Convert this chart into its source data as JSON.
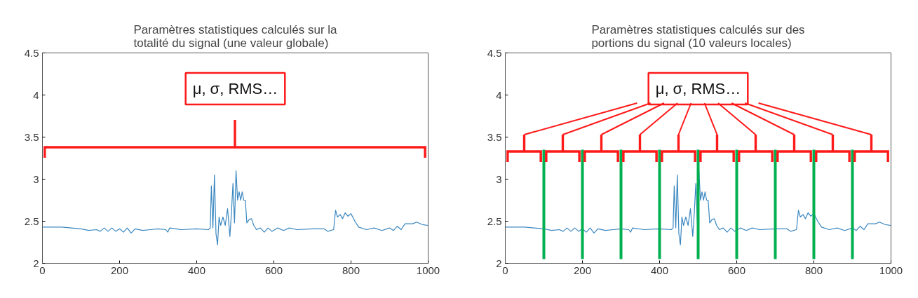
{
  "chart_data": [
    {
      "type": "line",
      "title": "Paramètres statistiques calculés sur la\ntotalité du signal (une valeur globale)",
      "x": [
        0,
        50,
        100,
        120,
        140,
        150,
        160,
        170,
        180,
        190,
        200,
        210,
        220,
        230,
        240,
        260,
        280,
        300,
        320,
        325,
        330,
        360,
        400,
        430,
        435,
        438,
        442,
        446,
        450,
        454,
        458,
        462,
        468,
        474,
        480,
        486,
        490,
        494,
        498,
        502,
        506,
        510,
        514,
        518,
        522,
        526,
        530,
        536,
        542,
        548,
        555,
        565,
        575,
        585,
        595,
        610,
        625,
        640,
        660,
        700,
        730,
        740,
        755,
        760,
        765,
        772,
        778,
        785,
        792,
        800,
        810,
        820,
        840,
        860,
        880,
        900,
        910,
        920,
        930,
        940,
        960,
        970,
        985,
        1000
      ],
      "series": [
        {
          "color": "#3a87c0",
          "values": [
            2.43,
            2.43,
            2.41,
            2.39,
            2.4,
            2.38,
            2.42,
            2.38,
            2.42,
            2.38,
            2.41,
            2.37,
            2.42,
            2.36,
            2.41,
            2.39,
            2.4,
            2.41,
            2.4,
            2.37,
            2.42,
            2.4,
            2.41,
            2.4,
            2.42,
            2.92,
            2.42,
            3.05,
            2.35,
            2.22,
            2.55,
            2.45,
            2.55,
            2.45,
            2.65,
            2.32,
            2.6,
            2.95,
            2.48,
            3.1,
            2.75,
            2.85,
            2.75,
            2.85,
            2.75,
            2.75,
            2.48,
            2.52,
            2.53,
            2.45,
            2.4,
            2.42,
            2.37,
            2.42,
            2.38,
            2.42,
            2.39,
            2.42,
            2.4,
            2.41,
            2.41,
            2.38,
            2.4,
            2.63,
            2.55,
            2.58,
            2.53,
            2.6,
            2.56,
            2.59,
            2.5,
            2.43,
            2.4,
            2.42,
            2.39,
            2.42,
            2.39,
            2.44,
            2.4,
            2.47,
            2.47,
            2.49,
            2.46,
            2.45
          ]
        }
      ],
      "xlim": [
        0,
        1000
      ],
      "ylim": [
        2,
        4.5
      ],
      "xticks": [
        0,
        200,
        400,
        600,
        800,
        1000
      ],
      "yticks": [
        2,
        2.5,
        3,
        3.5,
        4,
        4.5
      ],
      "grid": false,
      "annotations": [
        "μ, σ, RMS…"
      ]
    },
    {
      "type": "line",
      "title": "Paramètres statistiques calculés sur des\nportions du signal (10 valeurs locales)",
      "x": [
        0,
        50,
        100,
        120,
        140,
        150,
        160,
        170,
        180,
        190,
        200,
        210,
        220,
        230,
        240,
        260,
        280,
        300,
        320,
        325,
        330,
        360,
        400,
        430,
        435,
        438,
        442,
        446,
        450,
        454,
        458,
        462,
        468,
        474,
        480,
        486,
        490,
        494,
        498,
        502,
        506,
        510,
        514,
        518,
        522,
        526,
        530,
        536,
        542,
        548,
        555,
        565,
        575,
        585,
        595,
        610,
        625,
        640,
        660,
        700,
        730,
        740,
        755,
        760,
        765,
        772,
        778,
        785,
        792,
        800,
        810,
        820,
        840,
        860,
        880,
        900,
        910,
        920,
        930,
        940,
        960,
        970,
        985,
        1000
      ],
      "series": [
        {
          "color": "#3a87c0",
          "values": [
            2.43,
            2.43,
            2.41,
            2.39,
            2.4,
            2.38,
            2.42,
            2.38,
            2.42,
            2.38,
            2.41,
            2.37,
            2.42,
            2.36,
            2.41,
            2.39,
            2.4,
            2.41,
            2.4,
            2.37,
            2.42,
            2.4,
            2.41,
            2.4,
            2.42,
            2.92,
            2.42,
            3.05,
            2.35,
            2.22,
            2.55,
            2.45,
            2.55,
            2.45,
            2.65,
            2.32,
            2.6,
            2.95,
            2.48,
            3.1,
            2.75,
            2.85,
            2.75,
            2.85,
            2.75,
            2.75,
            2.48,
            2.52,
            2.53,
            2.45,
            2.4,
            2.42,
            2.37,
            2.42,
            2.38,
            2.42,
            2.39,
            2.42,
            2.4,
            2.41,
            2.41,
            2.38,
            2.4,
            2.63,
            2.55,
            2.58,
            2.53,
            2.6,
            2.56,
            2.59,
            2.5,
            2.43,
            2.4,
            2.42,
            2.39,
            2.42,
            2.39,
            2.44,
            2.4,
            2.47,
            2.47,
            2.49,
            2.46,
            2.45
          ]
        }
      ],
      "xlim": [
        0,
        1000
      ],
      "ylim": [
        2,
        4.5
      ],
      "xticks": [
        0,
        200,
        400,
        600,
        800,
        1000
      ],
      "yticks": [
        2,
        2.5,
        3,
        3.5,
        4,
        4.5
      ],
      "grid": false,
      "ref_lines": [
        {
          "axis": "x",
          "value": 100,
          "color": "#00b050"
        },
        {
          "axis": "x",
          "value": 200,
          "color": "#00b050"
        },
        {
          "axis": "x",
          "value": 300,
          "color": "#00b050"
        },
        {
          "axis": "x",
          "value": 400,
          "color": "#00b050"
        },
        {
          "axis": "x",
          "value": 500,
          "color": "#00b050"
        },
        {
          "axis": "x",
          "value": 600,
          "color": "#00b050"
        },
        {
          "axis": "x",
          "value": 700,
          "color": "#00b050"
        },
        {
          "axis": "x",
          "value": 800,
          "color": "#00b050"
        },
        {
          "axis": "x",
          "value": 900,
          "color": "#00b050"
        }
      ],
      "annotations": [
        "μ, σ, RMS…"
      ]
    }
  ]
}
